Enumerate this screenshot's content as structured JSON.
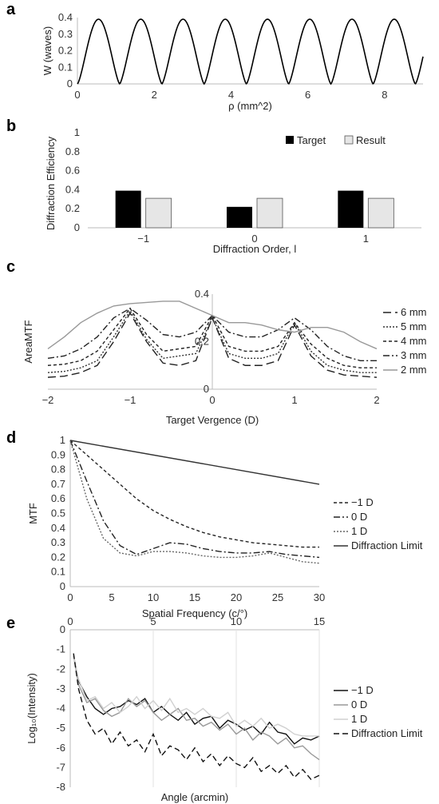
{
  "chart_data": [
    {
      "panel": "a",
      "type": "line",
      "xlabel": "ρ (mm^2)",
      "ylabel": "W (waves)",
      "xlim": [
        0,
        9
      ],
      "ylim": [
        0,
        0.4
      ],
      "xticks": [
        "0",
        "2",
        "4",
        "6",
        "8"
      ],
      "yticks": [
        "0",
        "0.1",
        "0.2",
        "0.3",
        "0.4"
      ],
      "period": 1.1,
      "peak": 0.39,
      "color": "#000000"
    },
    {
      "panel": "b",
      "type": "bar",
      "xlabel": "Diffraction Order, l",
      "ylabel": "Diffraction Efficiency",
      "ylim": [
        0,
        1
      ],
      "yticks": [
        "0",
        "0.2",
        "0.4",
        "0.6",
        "0.8",
        "1"
      ],
      "categories": [
        "−1",
        "0",
        "1"
      ],
      "series": [
        {
          "name": "Target",
          "values": [
            0.39,
            0.22,
            0.39
          ],
          "color": "#000000"
        },
        {
          "name": "Result",
          "values": [
            0.31,
            0.31,
            0.31
          ],
          "color": "#e6e6e6"
        }
      ],
      "legend": "top-right"
    },
    {
      "panel": "c",
      "type": "line",
      "xlabel": "Target Vergence (D)",
      "ylabel": "AreaMTF",
      "xlim": [
        -2,
        2
      ],
      "ylim": [
        0,
        0.4
      ],
      "xticks": [
        "−2",
        "−1",
        "0",
        "1",
        "2"
      ],
      "yticks": [
        "0",
        "0.2",
        "0.4"
      ],
      "legend": "right",
      "series": [
        {
          "name": "6 mm",
          "dash": "10,5",
          "color": "#222222",
          "x": [
            -2,
            -1.8,
            -1.6,
            -1.4,
            -1.2,
            -1,
            -0.8,
            -0.6,
            -0.4,
            -0.2,
            0,
            0.2,
            0.4,
            0.6,
            0.8,
            1,
            1.2,
            1.4,
            1.6,
            1.8,
            2
          ],
          "y": [
            0.05,
            0.055,
            0.07,
            0.1,
            0.2,
            0.32,
            0.2,
            0.11,
            0.1,
            0.12,
            0.3,
            0.13,
            0.1,
            0.1,
            0.12,
            0.27,
            0.14,
            0.08,
            0.06,
            0.055,
            0.05
          ]
        },
        {
          "name": "5 mm",
          "dash": "2,2",
          "color": "#333333",
          "x": [
            -2,
            -1.8,
            -1.6,
            -1.4,
            -1.2,
            -1,
            -0.8,
            -0.6,
            -0.4,
            -0.2,
            0,
            0.2,
            0.4,
            0.6,
            0.8,
            1,
            1.2,
            1.4,
            1.6,
            1.8,
            2
          ],
          "y": [
            0.07,
            0.075,
            0.09,
            0.12,
            0.22,
            0.33,
            0.21,
            0.13,
            0.14,
            0.15,
            0.3,
            0.15,
            0.13,
            0.13,
            0.15,
            0.28,
            0.16,
            0.1,
            0.08,
            0.07,
            0.07
          ]
        },
        {
          "name": "4 mm",
          "dash": "4,3",
          "color": "#222222",
          "x": [
            -2,
            -1.8,
            -1.6,
            -1.4,
            -1.2,
            -1,
            -0.8,
            -0.6,
            -0.4,
            -0.2,
            0,
            0.2,
            0.4,
            0.6,
            0.8,
            1,
            1.2,
            1.4,
            1.6,
            1.8,
            2
          ],
          "y": [
            0.1,
            0.105,
            0.12,
            0.16,
            0.25,
            0.34,
            0.23,
            0.16,
            0.17,
            0.18,
            0.31,
            0.18,
            0.16,
            0.16,
            0.18,
            0.28,
            0.19,
            0.13,
            0.1,
            0.09,
            0.09
          ]
        },
        {
          "name": "3 mm",
          "dash": "8,3,2,3",
          "color": "#222222",
          "x": [
            -2,
            -1.8,
            -1.6,
            -1.4,
            -1.2,
            -1,
            -0.8,
            -0.6,
            -0.4,
            -0.2,
            0,
            0.2,
            0.4,
            0.6,
            0.8,
            1,
            1.2,
            1.4,
            1.6,
            1.8,
            2
          ],
          "y": [
            0.13,
            0.14,
            0.17,
            0.22,
            0.3,
            0.34,
            0.29,
            0.23,
            0.22,
            0.24,
            0.31,
            0.24,
            0.22,
            0.22,
            0.25,
            0.3,
            0.25,
            0.18,
            0.14,
            0.12,
            0.12
          ]
        },
        {
          "name": "2 mm",
          "dash": "",
          "color": "#999999",
          "x": [
            -2,
            -1.8,
            -1.6,
            -1.4,
            -1.2,
            -1,
            -0.8,
            -0.6,
            -0.4,
            -0.2,
            0,
            0.2,
            0.4,
            0.6,
            0.8,
            1,
            1.2,
            1.4,
            1.6,
            1.8,
            2
          ],
          "y": [
            0.17,
            0.22,
            0.28,
            0.32,
            0.35,
            0.36,
            0.365,
            0.37,
            0.37,
            0.34,
            0.31,
            0.28,
            0.28,
            0.27,
            0.25,
            0.24,
            0.26,
            0.26,
            0.24,
            0.2,
            0.17
          ]
        }
      ]
    },
    {
      "panel": "d",
      "type": "line",
      "xlabel": "Spatial Frequency (c/°)",
      "ylabel": "MTF",
      "xlim": [
        0,
        30
      ],
      "ylim": [
        0,
        1
      ],
      "xticks": [
        "0",
        "5",
        "10",
        "15",
        "20",
        "25",
        "30"
      ],
      "yticks": [
        "0",
        "0.1",
        "0.2",
        "0.3",
        "0.4",
        "0.5",
        "0.6",
        "0.7",
        "0.8",
        "0.9",
        "1"
      ],
      "legend": "right",
      "series": [
        {
          "name": "−1 D",
          "dash": "4,3",
          "color": "#222222",
          "x": [
            0,
            2,
            4,
            6,
            8,
            10,
            12,
            14,
            16,
            18,
            20,
            22,
            24,
            26,
            28,
            30
          ],
          "y": [
            1,
            0.9,
            0.8,
            0.7,
            0.6,
            0.52,
            0.46,
            0.41,
            0.37,
            0.34,
            0.32,
            0.3,
            0.29,
            0.28,
            0.27,
            0.27
          ]
        },
        {
          "name": "0 D",
          "dash": "8,3,2,3",
          "color": "#222222",
          "x": [
            0,
            2,
            4,
            6,
            8,
            10,
            12,
            14,
            16,
            18,
            20,
            22,
            24,
            26,
            28,
            30
          ],
          "y": [
            1,
            0.72,
            0.45,
            0.28,
            0.22,
            0.26,
            0.3,
            0.29,
            0.26,
            0.24,
            0.23,
            0.23,
            0.24,
            0.22,
            0.21,
            0.2
          ]
        },
        {
          "name": "1 D",
          "dash": "2,2",
          "color": "#666666",
          "x": [
            0,
            2,
            4,
            6,
            8,
            10,
            12,
            14,
            16,
            18,
            20,
            22,
            24,
            26,
            28,
            30
          ],
          "y": [
            1,
            0.6,
            0.33,
            0.23,
            0.21,
            0.24,
            0.24,
            0.23,
            0.21,
            0.2,
            0.2,
            0.21,
            0.23,
            0.2,
            0.17,
            0.16
          ]
        },
        {
          "name": "Diffraction Limit",
          "dash": "",
          "color": "#333333",
          "x": [
            0,
            30
          ],
          "y": [
            1,
            0.7
          ]
        }
      ]
    },
    {
      "panel": "e",
      "type": "line",
      "xlabel": "Angle (arcmin)",
      "ylabel": "Log₁₀(Intensity)",
      "xlim": [
        0,
        15
      ],
      "ylim": [
        -8,
        0
      ],
      "xticks": [
        "0",
        "5",
        "10",
        "15"
      ],
      "yticks": [
        "0",
        "-1",
        "-2",
        "-3",
        "-4",
        "-5",
        "-6",
        "-7",
        "-8"
      ],
      "legend": "right",
      "series": [
        {
          "name": "−1 D",
          "dash": "",
          "color": "#111111",
          "x": [
            0.2,
            0.5,
            1,
            1.5,
            2,
            2.5,
            3,
            3.5,
            4,
            4.5,
            5,
            5.5,
            6,
            6.5,
            7,
            7.5,
            8,
            8.5,
            9,
            9.5,
            10,
            10.5,
            11,
            11.5,
            12,
            12.5,
            13,
            13.5,
            14,
            14.5,
            15
          ],
          "y": [
            -1.3,
            -2.6,
            -3.4,
            -4.0,
            -4.3,
            -4.0,
            -3.9,
            -3.6,
            -3.8,
            -3.5,
            -4.2,
            -3.9,
            -4.3,
            -4.6,
            -4.2,
            -4.8,
            -4.5,
            -4.4,
            -5.0,
            -4.6,
            -4.8,
            -5.1,
            -4.9,
            -5.3,
            -4.7,
            -5.2,
            -5.3,
            -5.8,
            -5.5,
            -5.6,
            -5.4
          ]
        },
        {
          "name": "0 D",
          "dash": "",
          "color": "#999999",
          "x": [
            0.2,
            0.5,
            1,
            1.5,
            2,
            2.5,
            3,
            3.5,
            4,
            4.5,
            5,
            5.5,
            6,
            6.5,
            7,
            7.5,
            8,
            8.5,
            9,
            9.5,
            10,
            10.5,
            11,
            11.5,
            12,
            12.5,
            13,
            13.5,
            14,
            14.5,
            15
          ],
          "y": [
            -1.3,
            -2.8,
            -3.7,
            -3.5,
            -4.1,
            -4.4,
            -4.2,
            -3.5,
            -3.9,
            -3.6,
            -4.2,
            -4.6,
            -4.3,
            -4.0,
            -4.6,
            -4.5,
            -4.9,
            -4.7,
            -5.1,
            -4.8,
            -5.3,
            -5.0,
            -5.6,
            -5.2,
            -5.4,
            -5.8,
            -5.5,
            -6.0,
            -5.9,
            -6.3,
            -6.6
          ]
        },
        {
          "name": "1 D",
          "dash": "",
          "color": "#d0d0d0",
          "x": [
            0.2,
            0.5,
            1,
            1.5,
            2,
            2.5,
            3,
            3.5,
            4,
            4.5,
            5,
            5.5,
            6,
            6.5,
            7,
            7.5,
            8,
            8.5,
            9,
            9.5,
            10,
            10.5,
            11,
            11.5,
            12,
            12.5,
            13,
            13.5,
            14,
            14.5,
            15
          ],
          "y": [
            -1.3,
            -2.5,
            -3.6,
            -3.4,
            -4.0,
            -3.7,
            -4.2,
            -3.9,
            -3.4,
            -4.0,
            -3.6,
            -4.1,
            -3.5,
            -4.2,
            -4.0,
            -4.3,
            -4.0,
            -4.4,
            -4.5,
            -4.2,
            -4.9,
            -4.6,
            -4.9,
            -4.5,
            -5.0,
            -4.8,
            -5.0,
            -5.3,
            -5.4,
            -5.4,
            -5.4
          ]
        },
        {
          "name": "Diffraction Limit",
          "dash": "7,4",
          "color": "#111111",
          "x": [
            0.2,
            0.5,
            1,
            1.5,
            2,
            2.5,
            3,
            3.5,
            4,
            4.5,
            5,
            5.5,
            6,
            6.5,
            7,
            7.5,
            8,
            8.5,
            9,
            9.5,
            10,
            10.5,
            11,
            11.5,
            12,
            12.5,
            13,
            13.5,
            14,
            14.5,
            15
          ],
          "y": [
            -1.2,
            -3.0,
            -4.6,
            -5.3,
            -5.0,
            -5.8,
            -5.2,
            -5.9,
            -5.6,
            -6.2,
            -5.3,
            -6.4,
            -5.9,
            -6.1,
            -6.6,
            -6.0,
            -6.7,
            -6.3,
            -6.9,
            -6.4,
            -6.8,
            -7.0,
            -6.5,
            -7.2,
            -6.9,
            -7.3,
            -6.9,
            -7.5,
            -7.1,
            -7.6,
            -7.4
          ]
        }
      ]
    }
  ]
}
